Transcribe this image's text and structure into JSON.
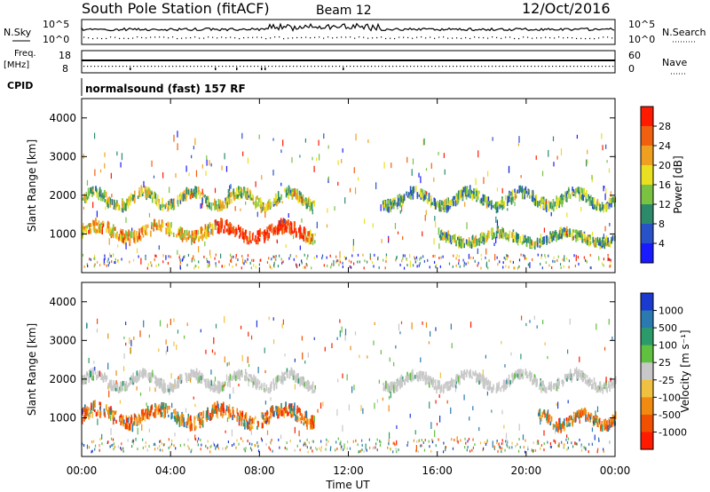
{
  "header": {
    "station": "South Pole Station (fitACF)",
    "beam": "Beam 12",
    "date": "12/Oct/2016"
  },
  "meta_panels": {
    "nsky_label": "N.Sky",
    "nsky_ticks": [
      "10^5",
      "10^0"
    ],
    "nsearch_label": "N.Search",
    "nsearch_ticks": [
      "10^5",
      "10^0"
    ],
    "freq_label": "Freq.",
    "freq_unit": "[MHz]",
    "freq_ticks": [
      "18",
      "8"
    ],
    "nave_label": "Nave",
    "nave_ticks": [
      "60",
      "0"
    ],
    "cpid_label": "CPID",
    "cpid_text": "normalsound (fast) 157 RF"
  },
  "chart_data": [
    {
      "type": "heatmap",
      "name": "power",
      "ylabel": "Slant Range [km]",
      "ylim": [
        0,
        4500
      ],
      "yticks": [
        "1000",
        "2000",
        "3000",
        "4000"
      ],
      "xlim": [
        0,
        24
      ],
      "colorbar": {
        "label": "Power [dB]",
        "ticks": [
          "4",
          "8",
          "12",
          "16",
          "20",
          "24",
          "28"
        ],
        "range": [
          0,
          32
        ],
        "colors": [
          "#1a1aff",
          "#2a52c8",
          "#2c8a6a",
          "#7ac242",
          "#e8e020",
          "#f0a020",
          "#f06010",
          "#ff1a00"
        ]
      },
      "bands": [
        {
          "t0": 0.0,
          "t1": 10.5,
          "r_mean": 1900,
          "r_amp": 180,
          "r_period": 2.2,
          "width": 220,
          "level": 0.55
        },
        {
          "t0": 0.0,
          "t1": 10.5,
          "r_mean": 1050,
          "r_amp": 150,
          "r_period": 2.8,
          "width": 260,
          "level": 0.75
        },
        {
          "t0": 13.5,
          "t1": 24.0,
          "r_mean": 1900,
          "r_amp": 180,
          "r_period": 2.4,
          "width": 220,
          "level": 0.45
        },
        {
          "t0": 16.0,
          "t1": 24.0,
          "r_mean": 900,
          "r_amp": 120,
          "r_period": 3.0,
          "width": 200,
          "level": 0.5
        }
      ]
    },
    {
      "type": "heatmap",
      "name": "velocity",
      "ylabel": "Slant Range [km]",
      "ylim": [
        0,
        4500
      ],
      "yticks": [
        "1000",
        "2000",
        "3000",
        "4000"
      ],
      "xlim": [
        0,
        24
      ],
      "xticks": [
        "00:00",
        "04:00",
        "08:00",
        "12:00",
        "16:00",
        "20:00",
        "00:00"
      ],
      "xlabel": "Time UT",
      "colorbar": {
        "label": "Velocity [m s⁻¹]",
        "ticks": [
          "1000",
          "500",
          "100",
          "25",
          "-25",
          "-100",
          "-500",
          "-1000"
        ],
        "colors": [
          "#1a3ad0",
          "#2a7ab0",
          "#2c9a6a",
          "#60c040",
          "#c8c8c8",
          "#f0c040",
          "#f08a10",
          "#f05000",
          "#ff1a00"
        ]
      },
      "bands": [
        {
          "t0": 0.0,
          "t1": 10.5,
          "r_mean": 1950,
          "r_amp": 170,
          "r_period": 2.2,
          "width": 200,
          "mode": "gray"
        },
        {
          "t0": 0.0,
          "t1": 10.5,
          "r_mean": 1050,
          "r_amp": 180,
          "r_period": 2.8,
          "width": 300,
          "mode": "orange"
        },
        {
          "t0": 13.5,
          "t1": 24.0,
          "r_mean": 1950,
          "r_amp": 170,
          "r_period": 2.4,
          "width": 200,
          "mode": "gray"
        },
        {
          "t0": 20.5,
          "t1": 24.0,
          "r_mean": 950,
          "r_amp": 150,
          "r_period": 2.0,
          "width": 250,
          "mode": "orange"
        }
      ]
    }
  ]
}
